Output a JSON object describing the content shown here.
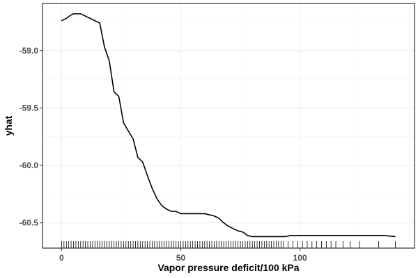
{
  "chart_data": {
    "type": "line",
    "xlabel": "Vapor pressure deficit/100 kPa",
    "ylabel": "yhat",
    "xlim": [
      -8,
      148
    ],
    "ylim": [
      -60.72,
      -58.59
    ],
    "x_ticks": [
      0,
      50,
      100
    ],
    "x_tick_labels": [
      "0",
      "50",
      "100"
    ],
    "y_ticks": [
      -59.0,
      -59.5,
      -60.0,
      -60.5
    ],
    "y_tick_labels": [
      "-59.0",
      "-59.5",
      "-60.0",
      "-60.5"
    ],
    "grid": true,
    "legend": "none",
    "series": [
      {
        "x": [
          0,
          2,
          4,
          5,
          8,
          10,
          12,
          14,
          16,
          18,
          20,
          22,
          24,
          26,
          28,
          30,
          32,
          34,
          36,
          38,
          40,
          42,
          44,
          46,
          48,
          50,
          52,
          54,
          56,
          58,
          60,
          62,
          64,
          66,
          68,
          70,
          72,
          74,
          76,
          78,
          80,
          82,
          84,
          86,
          88,
          90,
          92,
          94,
          96,
          98,
          100,
          105,
          110,
          115,
          120,
          125,
          130,
          135,
          140
        ],
        "y": [
          -58.74,
          -58.72,
          -58.69,
          -58.68,
          -58.68,
          -58.7,
          -58.72,
          -58.74,
          -58.76,
          -58.97,
          -59.09,
          -59.36,
          -59.4,
          -59.63,
          -59.7,
          -59.77,
          -59.93,
          -59.97,
          -60.09,
          -60.2,
          -60.29,
          -60.35,
          -60.38,
          -60.4,
          -60.4,
          -60.42,
          -60.42,
          -60.42,
          -60.42,
          -60.42,
          -60.42,
          -60.43,
          -60.44,
          -60.46,
          -60.5,
          -60.53,
          -60.55,
          -60.57,
          -60.58,
          -60.61,
          -60.62,
          -60.62,
          -60.62,
          -60.62,
          -60.62,
          -60.62,
          -60.62,
          -60.62,
          -60.61,
          -60.61,
          -60.61,
          -60.61,
          -60.61,
          -60.61,
          -60.61,
          -60.61,
          -60.61,
          -60.61,
          -60.62
        ],
        "color": "#000000"
      }
    ],
    "rug_x": [
      0,
      1,
      2,
      3,
      4,
      5,
      6,
      7,
      8,
      9,
      10,
      11,
      12,
      13,
      14,
      15,
      16,
      17,
      18,
      19,
      20,
      21,
      22,
      23,
      24,
      25,
      26,
      27,
      28,
      29,
      30,
      31,
      32,
      33,
      34,
      35,
      36,
      37,
      38,
      39,
      40,
      41,
      42,
      43,
      44,
      45,
      46,
      47,
      48,
      49,
      50,
      51,
      52,
      53,
      54,
      55,
      56,
      57,
      58,
      59,
      60,
      61,
      62,
      63,
      64,
      65,
      66,
      67,
      68,
      69,
      70,
      71,
      72,
      73,
      74,
      75,
      76,
      77,
      78,
      79,
      80,
      81,
      82,
      83,
      84,
      85,
      86,
      87,
      88,
      89,
      90,
      91,
      92,
      93,
      95,
      97,
      99,
      101,
      103,
      105,
      107,
      109,
      111,
      113,
      115,
      118,
      121,
      125,
      133,
      140
    ]
  }
}
